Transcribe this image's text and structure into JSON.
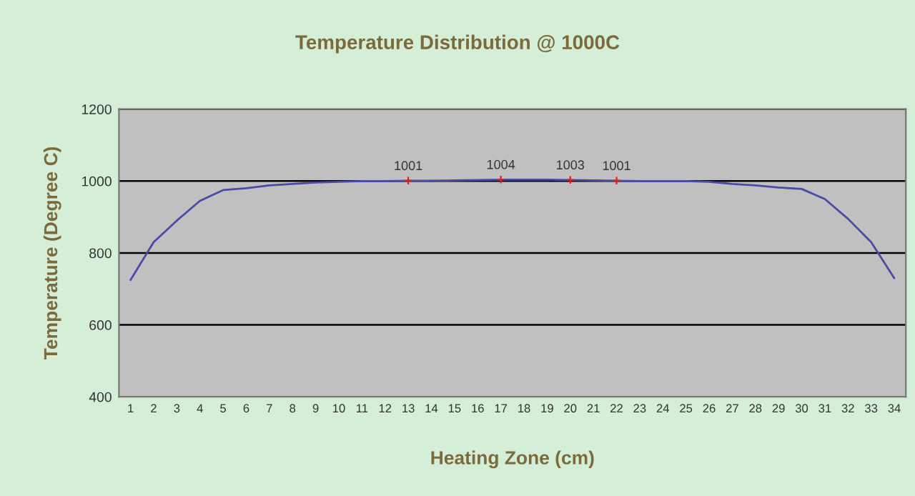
{
  "chart_data": {
    "type": "line",
    "title": "Temperature Distribution @ 1000C",
    "xlabel": "Heating Zone (cm)",
    "ylabel": "Temperature (Degree C)",
    "categories": [
      "1",
      "2",
      "3",
      "4",
      "5",
      "6",
      "7",
      "8",
      "9",
      "10",
      "11",
      "12",
      "13",
      "14",
      "15",
      "16",
      "17",
      "18",
      "19",
      "20",
      "21",
      "22",
      "23",
      "24",
      "25",
      "26",
      "27",
      "28",
      "29",
      "30",
      "31",
      "32",
      "33",
      "34"
    ],
    "series": [
      {
        "color": "#4a4aa8",
        "values": [
          725,
          830,
          890,
          945,
          975,
          980,
          988,
          992,
          996,
          998,
          1000,
          1000,
          1001,
          1001,
          1002,
          1003,
          1004,
          1004,
          1004,
          1003,
          1002,
          1001,
          1000,
          1000,
          1000,
          998,
          992,
          988,
          982,
          978,
          950,
          895,
          830,
          730
        ],
        "value_labels": [
          null,
          null,
          null,
          null,
          null,
          null,
          null,
          null,
          null,
          null,
          null,
          null,
          "1001",
          null,
          null,
          null,
          "1004",
          null,
          null,
          "1003",
          null,
          "1001",
          null,
          null,
          null,
          null,
          null,
          null,
          null,
          null,
          null,
          null,
          null,
          null
        ]
      },
      {
        "type": "scatter",
        "color": "#e02020",
        "marker": "cross",
        "x": [
          "13",
          "17",
          "20",
          "22"
        ],
        "values": [
          1001,
          1004,
          1003,
          1001
        ]
      }
    ],
    "ylim": [
      400,
      1200
    ],
    "yticks": [
      400,
      600,
      800,
      1000,
      1200
    ],
    "grid": "y",
    "legend": false,
    "marker": "none",
    "line_style": "solid"
  }
}
